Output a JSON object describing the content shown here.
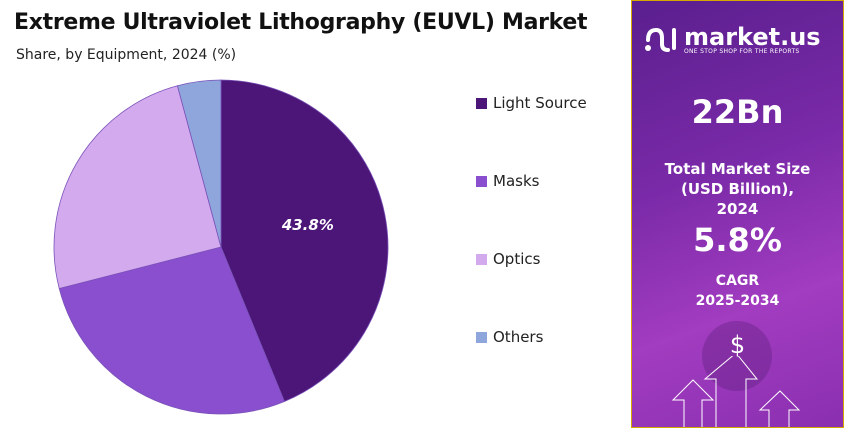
{
  "title": "Extreme Ultraviolet Lithography (EUVL) Market",
  "subtitle": "Share, by Equipment, 2024 (%)",
  "chart_data": {
    "type": "pie",
    "title": "Extreme Ultraviolet Lithography (EUVL) Market",
    "subtitle": "Share, by Equipment, 2024 (%)",
    "categories": [
      "Light Source",
      "Masks",
      "Optics",
      "Others"
    ],
    "values": [
      43.8,
      27.2,
      24.8,
      4.2
    ],
    "colors": [
      "#4b1678",
      "#8a4fcf",
      "#d4aaee",
      "#8fa6dc"
    ],
    "data_labels": [
      "43.8%"
    ],
    "legend": "right"
  },
  "panel": {
    "brand": "market.us",
    "tagline": "ONE STOP SHOP FOR THE REPORTS",
    "market_size": "22Bn",
    "market_size_label": "Total Market Size (USD Billion), 2024",
    "cagr": "5.8%",
    "cagr_label": "CAGR",
    "cagr_period": "2025-2034",
    "dollar": "$"
  }
}
